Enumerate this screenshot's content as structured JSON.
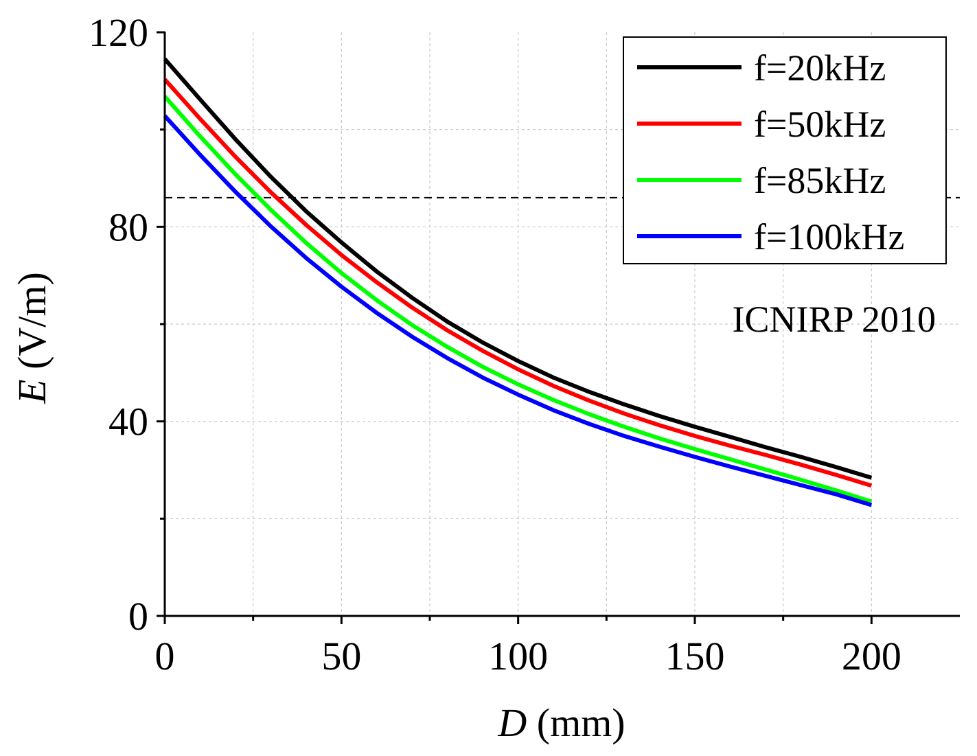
{
  "chart_data": {
    "type": "line",
    "title": "",
    "xlabel": {
      "var": "D",
      "unit": " (mm)"
    },
    "ylabel": {
      "var": "E",
      "unit": " (V/m)"
    },
    "xlim": [
      0,
      225
    ],
    "ylim": [
      0,
      120
    ],
    "xticks": [
      0,
      50,
      100,
      150,
      200
    ],
    "xtick_labels": [
      "0",
      "50",
      "100",
      "150",
      "200"
    ],
    "xminor": [
      25,
      75,
      125,
      175
    ],
    "yticks": [
      0,
      40,
      80,
      120
    ],
    "ytick_labels": [
      "0",
      "40",
      "80",
      "120"
    ],
    "yminor": [
      20,
      60,
      100
    ],
    "grid": true,
    "legend_position": "top-right",
    "x": [
      0,
      10,
      20,
      30,
      40,
      50,
      60,
      70,
      80,
      90,
      100,
      110,
      120,
      130,
      140,
      150,
      160,
      170,
      180,
      190,
      200
    ],
    "series": [
      {
        "name": "f=20kHz",
        "color": "#000000",
        "values": [
          114.5,
          106.2,
          98.0,
          90.3,
          83.2,
          76.8,
          70.8,
          65.4,
          60.5,
          56.2,
          52.4,
          49.0,
          46.1,
          43.5,
          41.1,
          38.9,
          36.8,
          34.7,
          32.7,
          30.6,
          28.4
        ]
      },
      {
        "name": "f=50kHz",
        "color": "#ff0000",
        "values": [
          110.3,
          102.2,
          94.4,
          87.1,
          80.4,
          74.2,
          68.6,
          63.4,
          58.7,
          54.5,
          50.7,
          47.3,
          44.3,
          41.6,
          39.2,
          37.0,
          35.0,
          33.1,
          31.1,
          29.0,
          26.8
        ]
      },
      {
        "name": "f=85kHz",
        "color": "#00ff00",
        "values": [
          106.8,
          98.6,
          90.8,
          83.5,
          76.7,
          70.5,
          64.9,
          59.8,
          55.3,
          51.2,
          47.6,
          44.4,
          41.5,
          38.9,
          36.5,
          34.3,
          32.2,
          30.1,
          28.0,
          25.8,
          23.5
        ]
      },
      {
        "name": "f=100kHz",
        "color": "#0000ff",
        "values": [
          102.8,
          94.8,
          87.2,
          80.1,
          73.6,
          67.7,
          62.3,
          57.4,
          53.0,
          49.0,
          45.5,
          42.3,
          39.5,
          37.0,
          34.8,
          32.7,
          30.7,
          28.8,
          26.9,
          25.0,
          22.8
        ]
      }
    ],
    "reference_line": {
      "y": 86,
      "style": "dashed",
      "color": "#000000"
    },
    "annotations": [
      "ICNIRP 2010"
    ]
  }
}
